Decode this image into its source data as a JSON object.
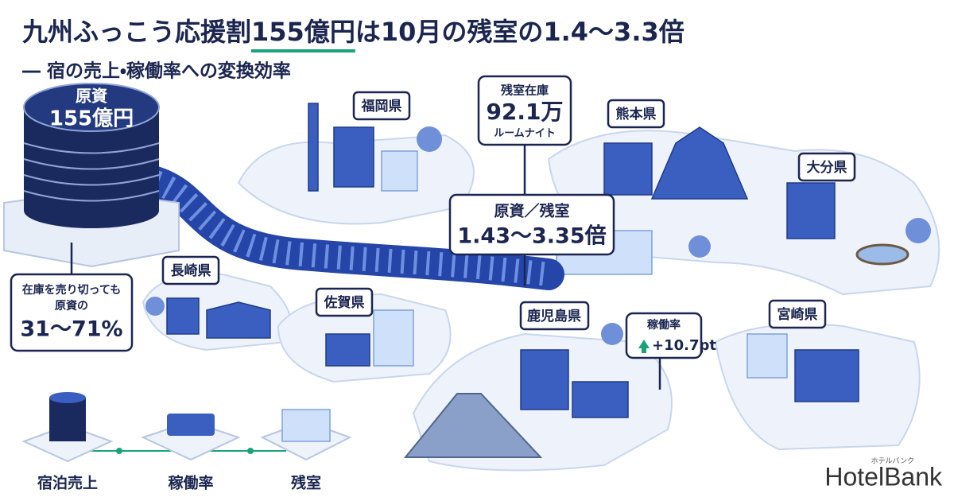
{
  "header": {
    "title_parts": [
      "九州ふっこう応援割",
      "155億円",
      "は10月の残室の1.4〜3.3倍"
    ],
    "subtitle": "― 宿の売上・稼働率への変換効率"
  },
  "fund": {
    "label": "原資",
    "amount": "155億円"
  },
  "prefectures": [
    "福岡県",
    "熊本県",
    "大分県",
    "長崎県",
    "佐賀県",
    "鹿児島県",
    "宮崎県"
  ],
  "callouts": {
    "inventory": {
      "title": "残室在庫",
      "value": "92.1万",
      "unit": "ルームナイト"
    },
    "ratio": {
      "title": "原資／残室",
      "value": "1.43〜3.35倍"
    },
    "selloff": {
      "line1": "在庫を売り切っても",
      "line2": "原資の",
      "value": "31〜71%"
    },
    "occupancy": {
      "title": "稼働率",
      "value": "+10.7pt"
    }
  },
  "flow": [
    "宿泊売上",
    "稼働率",
    "残室"
  ],
  "logo": {
    "name": "HotelBank",
    "kana": "ホテルバンク"
  }
}
